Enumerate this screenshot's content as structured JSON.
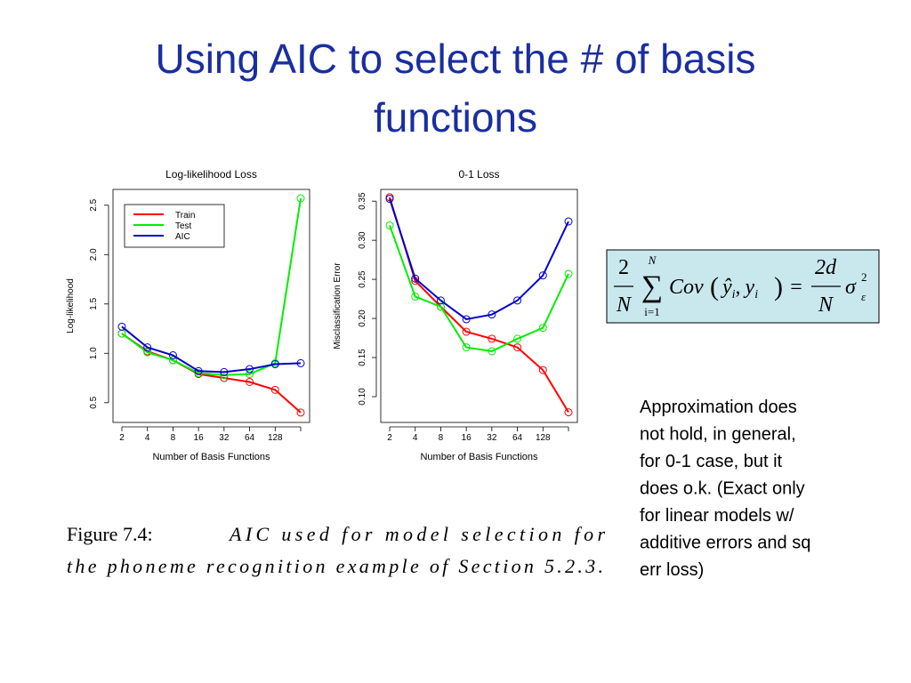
{
  "title": [
    "Using AIC to select the # of basis",
    "functions"
  ],
  "chart_data": [
    {
      "type": "line",
      "title": "Log-likelihood Loss",
      "x_label": "Number of Basis Functions",
      "y_label": "Log-likelihood",
      "categories": [
        "2",
        "4",
        "8",
        "16",
        "32",
        "64",
        "128",
        null
      ],
      "series": [
        {
          "name": "Train",
          "color": "#ff0000",
          "values": [
            1.2,
            1.02,
            0.93,
            0.79,
            0.75,
            0.71,
            0.63,
            0.4
          ]
        },
        {
          "name": "Test",
          "color": "#00ee00",
          "values": [
            1.2,
            1.01,
            0.93,
            0.8,
            0.78,
            0.79,
            0.9,
            2.57
          ]
        },
        {
          "name": "AIC",
          "color": "#0000cc",
          "values": [
            1.27,
            1.06,
            0.98,
            0.82,
            0.81,
            0.84,
            0.89,
            0.9
          ]
        }
      ],
      "ylim": [
        0.3,
        2.66
      ],
      "yticks": [
        {
          "value": 0.5,
          "label": "0.5"
        },
        {
          "value": 1,
          "label": "1.0"
        },
        {
          "value": 1.5,
          "label": "1.5"
        },
        {
          "value": 2,
          "label": "2.0"
        },
        {
          "value": 2.5,
          "label": "2.5"
        }
      ],
      "legend": "top-left"
    },
    {
      "type": "line",
      "title": "0-1 Loss",
      "x_label": "Number of Basis Functions",
      "y_label": "Misclassification Error",
      "categories": [
        "2",
        "4",
        "8",
        "16",
        "32",
        "64",
        "128",
        null
      ],
      "series": [
        {
          "name": "Train",
          "color": "#ff0000",
          "values": [
            0.355,
            0.248,
            0.215,
            0.183,
            0.174,
            0.163,
            0.134,
            0.08
          ]
        },
        {
          "name": "Test",
          "color": "#00ee00",
          "values": [
            0.319,
            0.228,
            0.215,
            0.163,
            0.158,
            0.174,
            0.188,
            0.257
          ]
        },
        {
          "name": "AIC",
          "color": "#0000cc",
          "values": [
            0.353,
            0.251,
            0.223,
            0.199,
            0.205,
            0.223,
            0.255,
            0.324
          ]
        }
      ],
      "ylim": [
        0.067,
        0.365
      ],
      "yticks": [
        {
          "value": 0.1,
          "label": "0.10"
        },
        {
          "value": 0.15,
          "label": "0.15"
        },
        {
          "value": 0.2,
          "label": "0.20"
        },
        {
          "value": 0.25,
          "label": "0.25"
        },
        {
          "value": 0.3,
          "label": "0.30"
        },
        {
          "value": 0.35,
          "label": "0.35"
        }
      ],
      "legend": "none"
    }
  ],
  "formula": {
    "frac1_num": "2",
    "frac1_den": "N",
    "sum_top": "N",
    "sum": "∑",
    "sum_bottom": "i=1",
    "cov": "Cov",
    "open": "(",
    "yhat": "ŷ",
    "sub1": "i",
    "comma": ",",
    "y": "y",
    "sub2": "i",
    "close": ")",
    "eq": "=",
    "frac2_num": "2d",
    "frac2_den": "N",
    "sigma": "σ",
    "sup": "2",
    "eps": "ε"
  },
  "caption": {
    "label": "Figure 7.4:",
    "line1": "AIC used for model selection for",
    "line2": "the phoneme recognition example of Section 5.2.3."
  },
  "note": [
    "Approximation does",
    "not hold, in general,",
    "for 0-1 case, but it",
    "does o.k. (Exact only",
    "for linear models w/",
    "additive errors and sq",
    "err loss)"
  ]
}
